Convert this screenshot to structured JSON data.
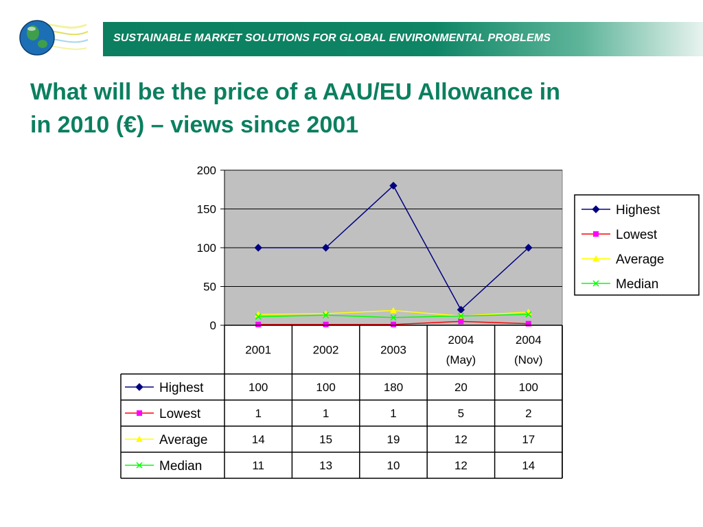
{
  "header": {
    "banner_text": "SUSTAINABLE MARKET SOLUTIONS FOR GLOBAL ENVIRONMENTAL PROBLEMS",
    "logo_icon": "globe-logo-icon",
    "title": "What will be the price of a AAU/EU Allowance in\nin 2010 (€) – views since 2001"
  },
  "colors": {
    "brand": "#0b7f5f",
    "plot_area": "#c0c0c0"
  },
  "chart_data": {
    "type": "line",
    "title": "",
    "xlabel": "",
    "ylabel": "",
    "ylim": [
      0,
      200
    ],
    "yticks": [
      0,
      50,
      100,
      150,
      200
    ],
    "grid": true,
    "legend_position": "right",
    "categories": [
      [
        "2001"
      ],
      [
        "2002"
      ],
      [
        "2003"
      ],
      [
        "2004",
        "(May)"
      ],
      [
        "2004",
        "(Nov)"
      ]
    ],
    "series": [
      {
        "name": "Highest",
        "values": [
          100,
          100,
          180,
          20,
          100
        ],
        "color": "#000080",
        "marker": "diamond"
      },
      {
        "name": "Lowest",
        "values": [
          1,
          1,
          1,
          5,
          2
        ],
        "color": "#ff00ff",
        "line_color": "#ff0000",
        "marker": "square"
      },
      {
        "name": "Average",
        "values": [
          14,
          15,
          19,
          12,
          17
        ],
        "color": "#ffff00",
        "marker": "triangle"
      },
      {
        "name": "Median",
        "values": [
          11,
          13,
          10,
          12,
          14
        ],
        "color": "#00ff00",
        "marker": "x"
      }
    ],
    "data_table": true
  }
}
